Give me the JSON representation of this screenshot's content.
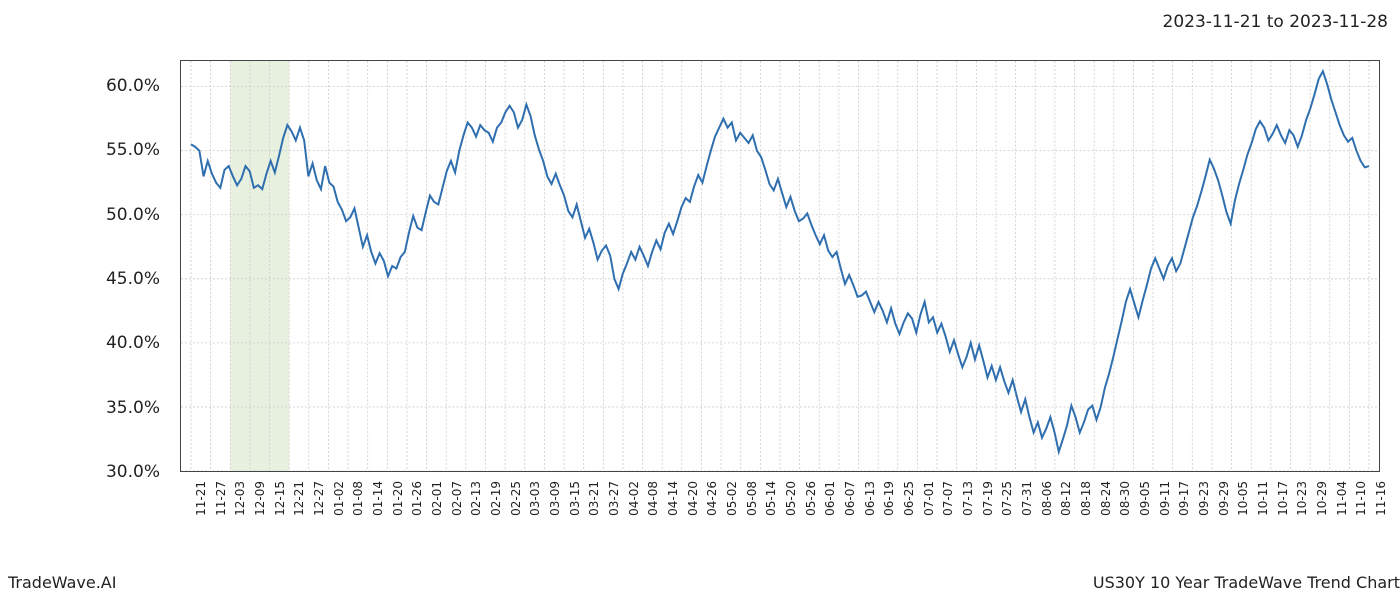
{
  "header": {
    "date_range": "2023-11-21 to 2023-11-28"
  },
  "footer": {
    "brand": "TradeWave.AI",
    "title": "US30Y 10 Year TradeWave Trend Chart"
  },
  "chart": {
    "type": "line",
    "background_color": "#ffffff",
    "grid_color": "#cccccc",
    "grid_dash": "2,2",
    "axis_color": "#444444",
    "line_color": "#2f6faf",
    "line_width": 2,
    "highlight_band": {
      "x_start_idx": 2,
      "x_end_idx": 5,
      "fill": "#e6eedd",
      "opacity": 0.9
    },
    "ylim": [
      30,
      62
    ],
    "yticks": [
      30,
      35,
      40,
      45,
      50,
      55,
      60
    ],
    "ytick_labels": [
      "30.0%",
      "35.0%",
      "40.0%",
      "45.0%",
      "50.0%",
      "55.0%",
      "60.0%"
    ],
    "ylabel_fontsize": 17,
    "xtick_labels": [
      "11-21",
      "11-27",
      "12-03",
      "12-09",
      "12-15",
      "12-21",
      "12-27",
      "01-02",
      "01-08",
      "01-14",
      "01-20",
      "01-26",
      "02-01",
      "02-07",
      "02-13",
      "02-19",
      "02-25",
      "03-03",
      "03-09",
      "03-15",
      "03-21",
      "03-27",
      "04-02",
      "04-08",
      "04-14",
      "04-20",
      "04-26",
      "05-02",
      "05-08",
      "05-14",
      "05-20",
      "05-26",
      "06-01",
      "06-07",
      "06-13",
      "06-19",
      "06-25",
      "07-01",
      "07-07",
      "07-13",
      "07-19",
      "07-25",
      "07-31",
      "08-06",
      "08-12",
      "08-18",
      "08-24",
      "08-30",
      "09-05",
      "09-11",
      "09-17",
      "09-23",
      "09-29",
      "10-05",
      "10-11",
      "10-17",
      "10-23",
      "10-29",
      "11-04",
      "11-10",
      "11-16"
    ],
    "xlabel_fontsize": 12,
    "series": [
      55.5,
      55.3,
      55.0,
      53.0,
      54.2,
      53.2,
      52.5,
      52.1,
      53.5,
      53.8,
      53.0,
      52.3,
      52.8,
      53.8,
      53.4,
      52.1,
      52.3,
      52.0,
      53.2,
      54.2,
      53.3,
      54.6,
      56.0,
      57.0,
      56.5,
      55.8,
      56.8,
      55.8,
      53.0,
      54.0,
      52.7,
      52.0,
      53.8,
      52.5,
      52.2,
      51.0,
      50.4,
      49.5,
      49.8,
      50.5,
      49.0,
      47.5,
      48.4,
      47.1,
      46.2,
      47.0,
      46.4,
      45.2,
      46.0,
      45.8,
      46.7,
      47.1,
      48.6,
      49.9,
      49.0,
      48.8,
      50.2,
      51.5,
      51.0,
      50.8,
      52.1,
      53.4,
      54.2,
      53.3,
      55.0,
      56.2,
      57.2,
      56.8,
      56.1,
      57.0,
      56.6,
      56.4,
      55.7,
      56.8,
      57.2,
      58.0,
      58.5,
      58.0,
      56.8,
      57.4,
      58.6,
      57.7,
      56.2,
      55.1,
      54.2,
      53.0,
      52.4,
      53.2,
      52.3,
      51.5,
      50.3,
      49.8,
      50.8,
      49.5,
      48.2,
      48.9,
      47.8,
      46.5,
      47.2,
      47.6,
      46.8,
      45.0,
      44.2,
      45.4,
      46.2,
      47.1,
      46.5,
      47.5,
      46.8,
      46.0,
      47.1,
      48.0,
      47.3,
      48.6,
      49.3,
      48.5,
      49.5,
      50.6,
      51.3,
      51.0,
      52.2,
      53.1,
      52.5,
      53.8,
      55.0,
      56.1,
      56.8,
      57.5,
      56.8,
      57.2,
      55.8,
      56.4,
      56.0,
      55.6,
      56.2,
      55.0,
      54.5,
      53.5,
      52.4,
      51.9,
      52.8,
      51.7,
      50.6,
      51.4,
      50.3,
      49.5,
      49.7,
      50.1,
      49.2,
      48.4,
      47.7,
      48.4,
      47.2,
      46.7,
      47.1,
      45.8,
      44.6,
      45.3,
      44.5,
      43.6,
      43.7,
      44.0,
      43.2,
      42.4,
      43.2,
      42.5,
      41.6,
      42.7,
      41.5,
      40.7,
      41.6,
      42.3,
      41.9,
      40.8,
      42.2,
      43.2,
      41.6,
      42.0,
      40.8,
      41.5,
      40.5,
      39.3,
      40.2,
      39.1,
      38.1,
      38.9,
      40.0,
      38.7,
      39.8,
      38.6,
      37.3,
      38.2,
      37.1,
      38.1,
      37.0,
      36.1,
      37.1,
      35.8,
      34.6,
      35.6,
      34.2,
      33.0,
      33.8,
      32.6,
      33.3,
      34.2,
      33.0,
      31.5,
      32.5,
      33.6,
      35.1,
      34.2,
      33.0,
      33.8,
      34.8,
      35.1,
      34.0,
      35.0,
      36.5,
      37.6,
      38.9,
      40.3,
      41.7,
      43.2,
      44.2,
      43.1,
      42.0,
      43.3,
      44.5,
      45.8,
      46.6,
      45.8,
      45.0,
      46.0,
      46.6,
      45.6,
      46.2,
      47.4,
      48.6,
      49.8,
      50.7,
      51.8,
      53.0,
      54.3,
      53.6,
      52.7,
      51.5,
      50.2,
      49.3,
      51.1,
      52.4,
      53.5,
      54.7,
      55.6,
      56.7,
      57.3,
      56.8,
      55.8,
      56.3,
      57.0,
      56.2,
      55.6,
      56.6,
      56.2,
      55.3,
      56.2,
      57.4,
      58.3,
      59.4,
      60.6,
      61.2,
      60.2,
      59.0,
      58.0,
      57.0,
      56.2,
      55.7,
      56.0,
      55.0,
      54.2,
      53.7,
      53.8
    ]
  }
}
